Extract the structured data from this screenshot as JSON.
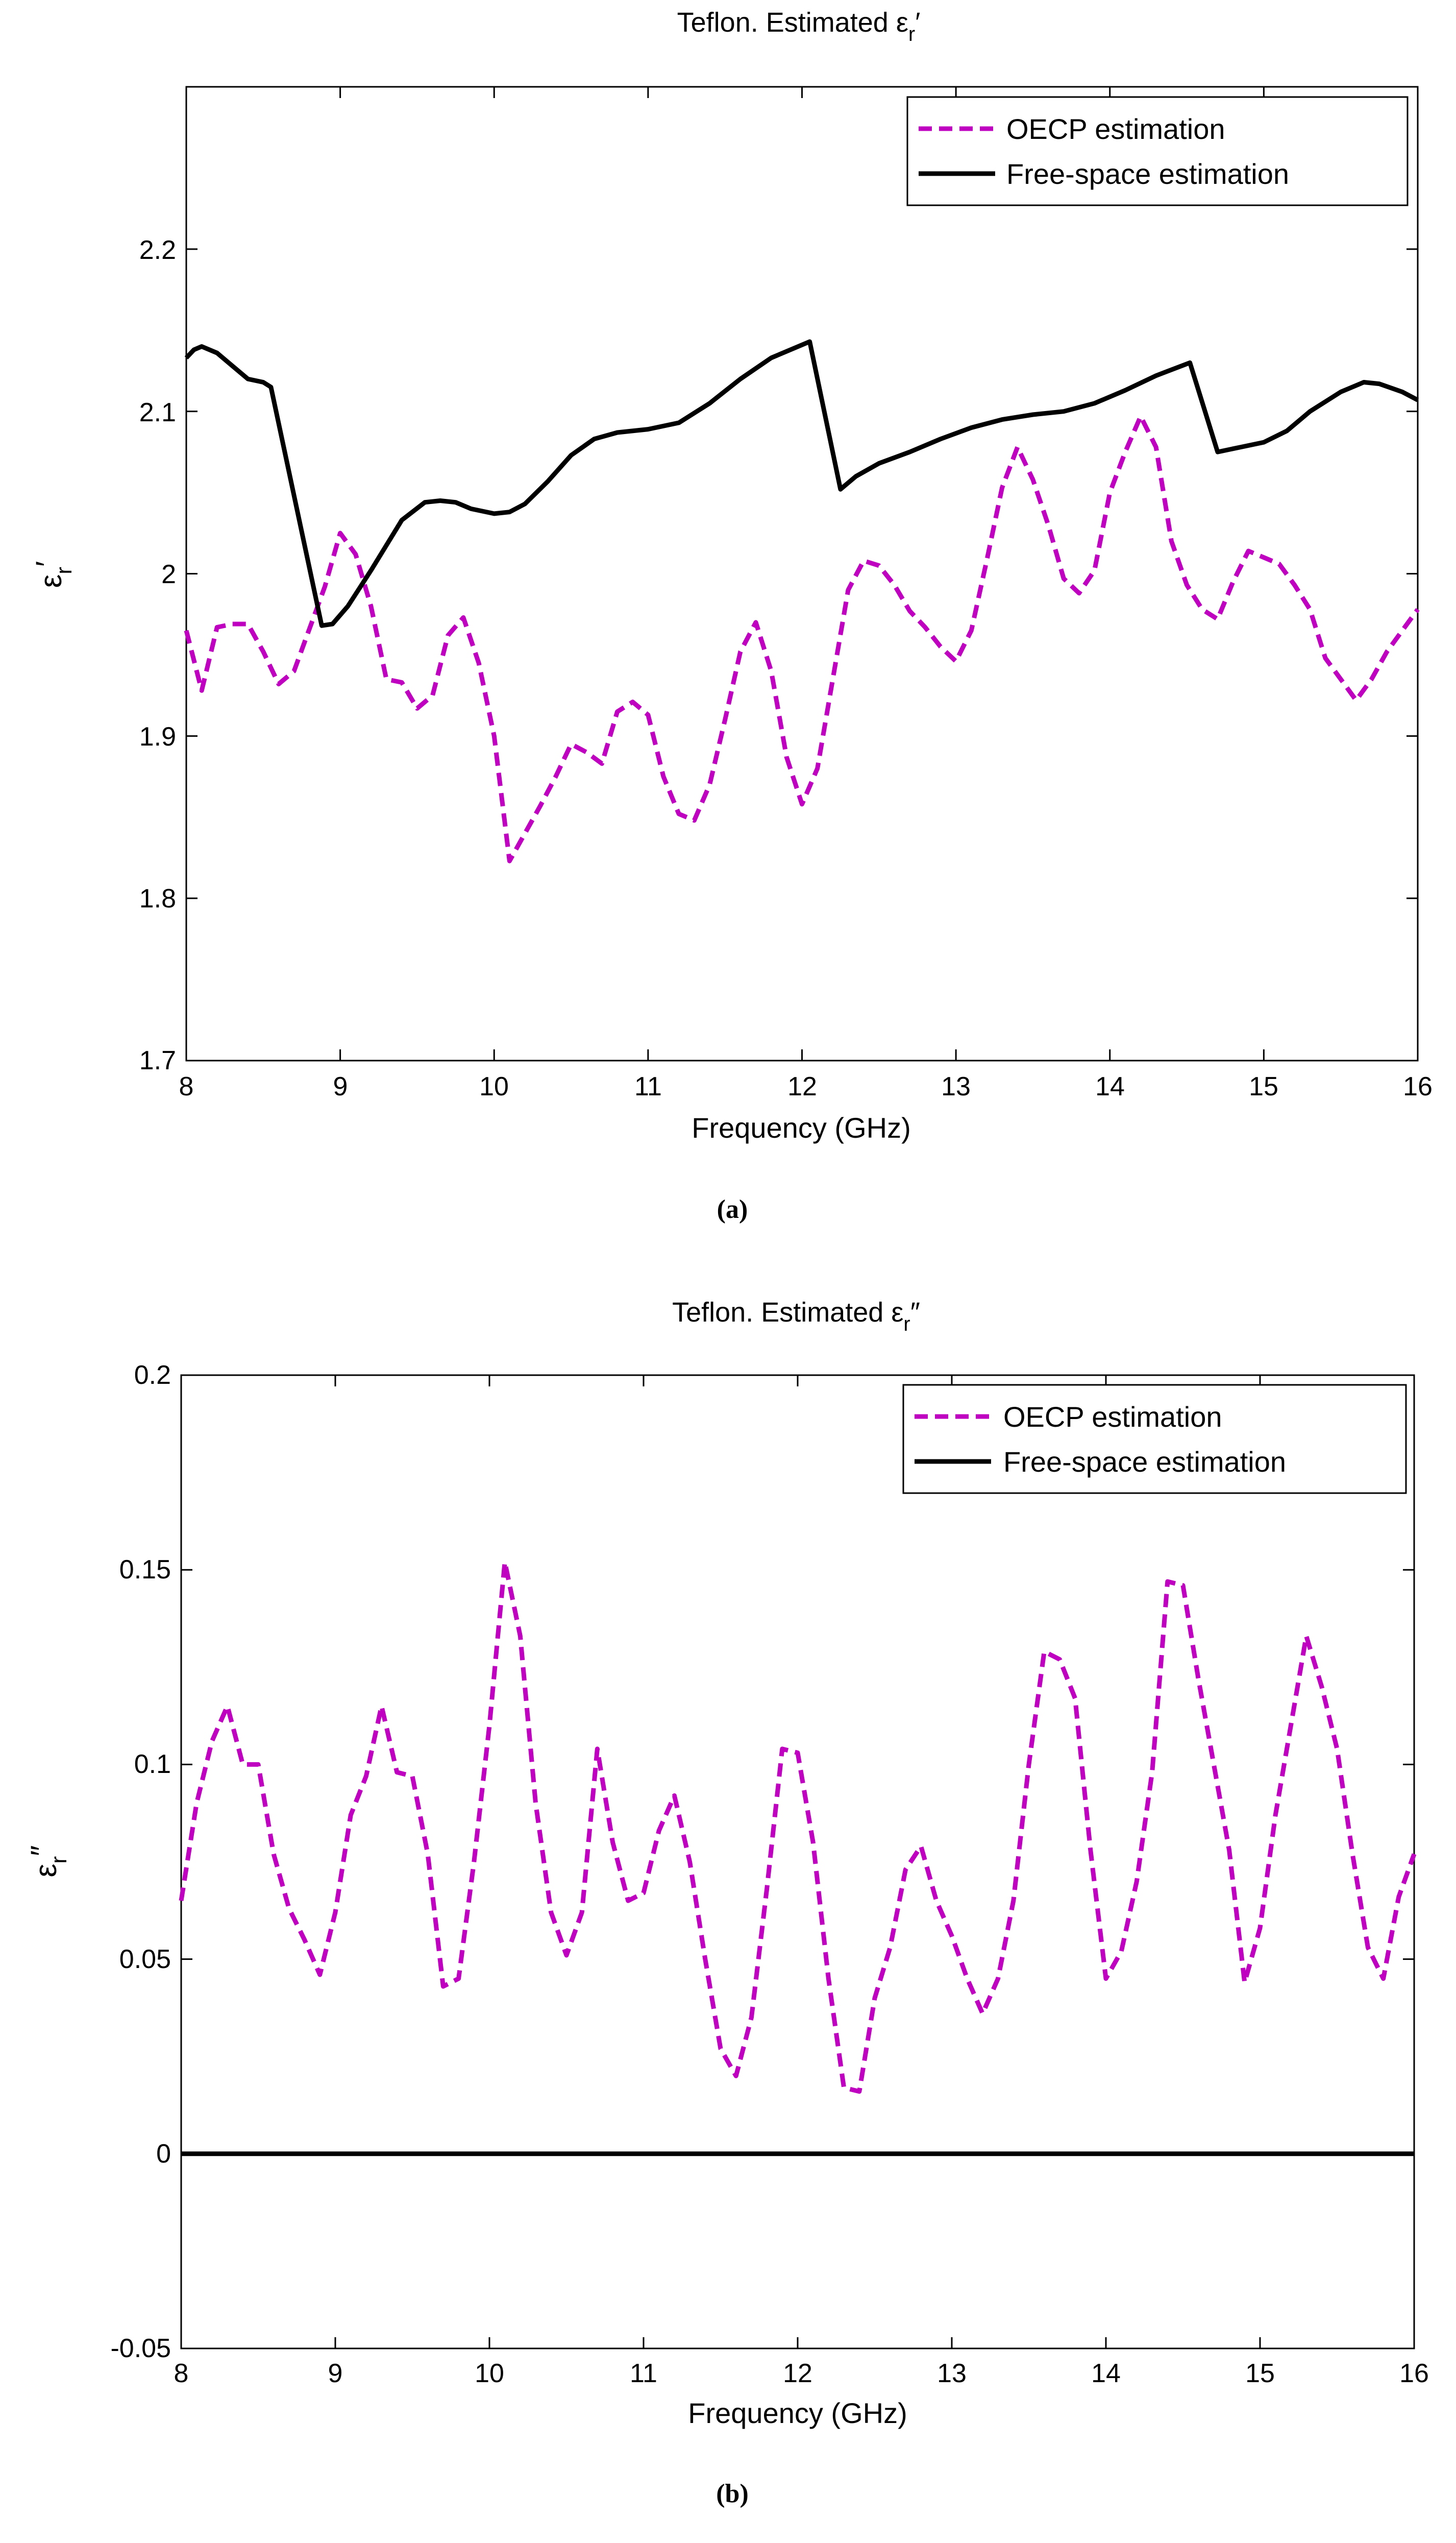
{
  "colors": {
    "oecp": "#c000c0",
    "free_space": "#000000",
    "axes": "#000000"
  },
  "chart_data": [
    {
      "type": "line",
      "panel_caption": "(a)",
      "title": "Teflon. Estimated εr′",
      "title_main": "Teflon. Estimated ε",
      "title_sub": "r",
      "title_prime": "′",
      "xlabel": "Frequency (GHz)",
      "ylabel_main": "ε",
      "ylabel_sub": "r",
      "ylabel_prime": "′",
      "xlim": [
        8,
        16
      ],
      "ylim": [
        1.7,
        2.3
      ],
      "xticks": [
        8,
        9,
        10,
        11,
        12,
        13,
        14,
        15,
        16
      ],
      "xtick_labels": [
        "8",
        "9",
        "10",
        "11",
        "12",
        "13",
        "14",
        "15",
        "16"
      ],
      "yticks": [
        1.7,
        1.8,
        1.9,
        2.0,
        2.1,
        2.2
      ],
      "ytick_labels": [
        "1.7",
        "1.8",
        "1.9",
        "2",
        "2.1",
        "2.2"
      ],
      "legend": {
        "position": "top-right",
        "entries": [
          "OECP estimation",
          "Free-space estimation"
        ]
      },
      "series": [
        {
          "name": "OECP estimation",
          "style": "dashed",
          "x": [
            8.0,
            8.1,
            8.2,
            8.3,
            8.4,
            8.5,
            8.6,
            8.7,
            8.8,
            8.9,
            9.0,
            9.1,
            9.2,
            9.3,
            9.4,
            9.5,
            9.6,
            9.7,
            9.8,
            9.9,
            10.0,
            10.1,
            10.2,
            10.3,
            10.4,
            10.5,
            10.6,
            10.7,
            10.8,
            10.9,
            11.0,
            11.1,
            11.2,
            11.3,
            11.4,
            11.5,
            11.6,
            11.7,
            11.8,
            11.9,
            12.0,
            12.1,
            12.2,
            12.3,
            12.4,
            12.5,
            12.6,
            12.7,
            12.8,
            12.9,
            13.0,
            13.1,
            13.2,
            13.3,
            13.4,
            13.5,
            13.6,
            13.7,
            13.8,
            13.9,
            14.0,
            14.1,
            14.2,
            14.3,
            14.4,
            14.5,
            14.6,
            14.7,
            14.8,
            14.9,
            15.0,
            15.1,
            15.2,
            15.3,
            15.4,
            15.5,
            15.6,
            15.7,
            15.8,
            15.9,
            16.0
          ],
          "y": [
            1.965,
            1.928,
            1.967,
            1.969,
            1.969,
            1.952,
            1.932,
            1.94,
            1.966,
            1.992,
            2.025,
            2.012,
            1.98,
            1.935,
            1.933,
            1.917,
            1.925,
            1.962,
            1.973,
            1.945,
            1.9,
            1.823,
            1.84,
            1.857,
            1.875,
            1.895,
            1.89,
            1.883,
            1.915,
            1.921,
            1.913,
            1.875,
            1.852,
            1.848,
            1.87,
            1.91,
            1.952,
            1.97,
            1.94,
            1.887,
            1.858,
            1.88,
            1.935,
            1.99,
            2.008,
            2.005,
            1.993,
            1.977,
            1.967,
            1.955,
            1.946,
            1.965,
            2.008,
            2.053,
            2.078,
            2.058,
            2.03,
            1.997,
            1.988,
            2.002,
            2.05,
            2.075,
            2.097,
            2.078,
            2.02,
            1.993,
            1.978,
            1.972,
            1.995,
            2.014,
            2.01,
            2.006,
            1.993,
            1.978,
            1.948,
            1.935,
            1.922,
            1.935,
            1.952,
            1.965,
            1.978
          ]
        },
        {
          "name": "Free-space estimation",
          "style": "solid",
          "x": [
            8.0,
            8.05,
            8.1,
            8.2,
            8.3,
            8.4,
            8.5,
            8.55,
            8.88,
            8.95,
            9.05,
            9.2,
            9.4,
            9.55,
            9.65,
            9.75,
            9.85,
            10.0,
            10.1,
            10.2,
            10.35,
            10.5,
            10.65,
            10.8,
            11.0,
            11.2,
            11.4,
            11.6,
            11.8,
            12.05,
            12.25,
            12.35,
            12.5,
            12.7,
            12.9,
            13.1,
            13.3,
            13.5,
            13.7,
            13.9,
            14.1,
            14.3,
            14.52,
            14.7,
            14.85,
            15.0,
            15.15,
            15.3,
            15.5,
            15.65,
            15.75,
            15.9,
            16.0
          ],
          "y": [
            2.133,
            2.138,
            2.14,
            2.136,
            2.128,
            2.12,
            2.118,
            2.115,
            1.968,
            1.969,
            1.98,
            2.002,
            2.033,
            2.044,
            2.045,
            2.044,
            2.04,
            2.037,
            2.038,
            2.043,
            2.057,
            2.073,
            2.083,
            2.087,
            2.089,
            2.093,
            2.105,
            2.12,
            2.133,
            2.143,
            2.052,
            2.06,
            2.068,
            2.075,
            2.083,
            2.09,
            2.095,
            2.098,
            2.1,
            2.105,
            2.113,
            2.122,
            2.13,
            2.075,
            2.078,
            2.081,
            2.088,
            2.1,
            2.112,
            2.118,
            2.117,
            2.112,
            2.107
          ]
        }
      ]
    },
    {
      "type": "line",
      "panel_caption": "(b)",
      "title": "Teflon. Estimated εr″",
      "title_main": "Teflon. Estimated ε",
      "title_sub": "r",
      "title_prime": "″",
      "xlabel": "Frequency (GHz)",
      "ylabel_main": "ε",
      "ylabel_sub": "r",
      "ylabel_prime": "″",
      "xlim": [
        8,
        16
      ],
      "ylim": [
        -0.05,
        0.2
      ],
      "xticks": [
        8,
        9,
        10,
        11,
        12,
        13,
        14,
        15,
        16
      ],
      "xtick_labels": [
        "8",
        "9",
        "10",
        "11",
        "12",
        "13",
        "14",
        "15",
        "16"
      ],
      "yticks": [
        -0.05,
        0,
        0.05,
        0.1,
        0.15,
        0.2
      ],
      "ytick_labels": [
        "-0.05",
        "0",
        "0.05",
        "0.1",
        "0.15",
        "0.2"
      ],
      "legend": {
        "position": "top-right",
        "entries": [
          "OECP estimation",
          "Free-space estimation"
        ]
      },
      "series": [
        {
          "name": "OECP estimation",
          "style": "dashed",
          "x": [
            8.0,
            8.1,
            8.2,
            8.3,
            8.4,
            8.5,
            8.6,
            8.7,
            8.8,
            8.9,
            9.0,
            9.1,
            9.2,
            9.3,
            9.4,
            9.5,
            9.6,
            9.7,
            9.8,
            9.9,
            10.0,
            10.1,
            10.2,
            10.3,
            10.4,
            10.5,
            10.6,
            10.7,
            10.8,
            10.9,
            11.0,
            11.1,
            11.2,
            11.3,
            11.4,
            11.5,
            11.6,
            11.7,
            11.8,
            11.9,
            12.0,
            12.1,
            12.2,
            12.3,
            12.4,
            12.5,
            12.6,
            12.7,
            12.8,
            12.9,
            13.0,
            13.1,
            13.2,
            13.3,
            13.4,
            13.5,
            13.6,
            13.7,
            13.8,
            13.9,
            14.0,
            14.1,
            14.2,
            14.3,
            14.4,
            14.5,
            14.6,
            14.7,
            14.8,
            14.9,
            15.0,
            15.1,
            15.2,
            15.3,
            15.4,
            15.5,
            15.6,
            15.7,
            15.8,
            15.9,
            16.0
          ],
          "y": [
            0.065,
            0.09,
            0.106,
            0.115,
            0.1,
            0.1,
            0.077,
            0.063,
            0.055,
            0.046,
            0.062,
            0.087,
            0.097,
            0.115,
            0.098,
            0.097,
            0.077,
            0.043,
            0.045,
            0.075,
            0.11,
            0.152,
            0.133,
            0.09,
            0.062,
            0.051,
            0.062,
            0.104,
            0.08,
            0.065,
            0.067,
            0.083,
            0.092,
            0.075,
            0.05,
            0.027,
            0.02,
            0.035,
            0.068,
            0.104,
            0.103,
            0.08,
            0.045,
            0.017,
            0.016,
            0.04,
            0.053,
            0.073,
            0.079,
            0.065,
            0.056,
            0.045,
            0.036,
            0.045,
            0.065,
            0.1,
            0.129,
            0.127,
            0.117,
            0.078,
            0.045,
            0.052,
            0.07,
            0.098,
            0.147,
            0.146,
            0.122,
            0.1,
            0.078,
            0.044,
            0.058,
            0.087,
            0.11,
            0.133,
            0.12,
            0.104,
            0.077,
            0.053,
            0.045,
            0.066,
            0.077
          ]
        },
        {
          "name": "Free-space estimation",
          "style": "solid",
          "x": [
            8.0,
            16.0
          ],
          "y": [
            0.0,
            0.0
          ]
        }
      ]
    }
  ]
}
